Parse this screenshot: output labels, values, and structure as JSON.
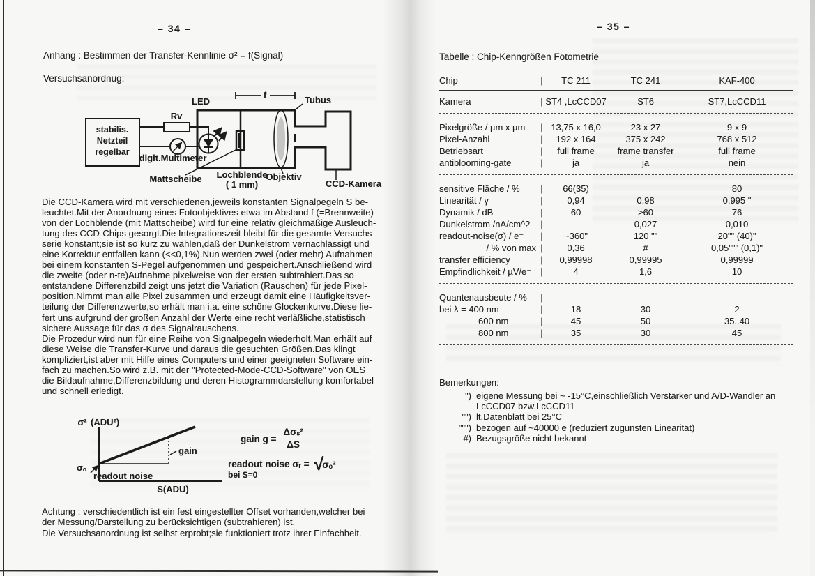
{
  "page_left": {
    "page_number": "–  34  –",
    "heading": "Anhang : Bestimmen der Transfer-Kennlinie σ² = f(Signal)",
    "subheading": "Versuchsanordnug:",
    "diagram": {
      "f_label": "f",
      "led": "LED",
      "rv": "Rv",
      "netzteil_line1": "stabilis.",
      "netzteil_line2": "Netzteil",
      "netzteil_line3": "regelbar",
      "multimeter": "digit.Multimeter",
      "mattscheibe": "Mattscheibe",
      "lochblende_line1": "Lochblende",
      "lochblende_line2": "( 1 mm)",
      "objektiv": "Objektiv",
      "tubus": "Tubus",
      "ccd_kamera": "CCD-Kamera"
    },
    "body_lines": [
      "Die CCD-Kamera wird mit verschiedenen,jeweils konstanten Signalpegeln S be-",
      "leuchtet.Mit der Anordnung eines Fotoobjektives etwa im Abstand f (=Brennweite)",
      "von der Lochblende (mit Mattscheibe) wird für eine relativ gleichmäßige Ausleuch-",
      "tung des CCD-Chips gesorgt.Die Integrationszeit bleibt für die gesamte Versuchs-",
      "serie konstant;sie ist so kurz zu wählen,daß der Dunkelstrom vernachlässigt und",
      "eine Korrektur entfallen kann (<<0,1%).Nun werden zwei (oder mehr) Aufnahmen",
      "bei einem konstanten S-Pegel aufgenommen und gespeichert.Anschließend wird",
      "die zweite (oder n-te)Aufnahme pixelweise von der ersten subtrahiert.Das so",
      "entstandene Differenzbild zeigt uns jetzt die Variation (Rauschen) für jede Pixel-",
      "position.Nimmt man alle Pixel zusammen und erzeugt damit eine Häufigkeitsver-",
      "teilung der Differenzwerte,so erhält man i.a. eine schöne Glockenkurve.Diese lie-",
      "fert uns aufgrund der großen Anzahl der Werte eine recht verläßliche,statistisch",
      "sichere Aussage für das σ des Signalrauschens.",
      "Die Prozedur wird nun für eine Reihe von Signalpegeln wiederholt.Man erhält auf",
      "diese Weise die Transfer-Kurve und daraus die gesuchten Größen.Das klingt",
      "kompliziert,ist aber mit Hilfe eines Computers und einer geeigneten Software ein-",
      "fach zu machen.So wird z.B. mit der \"Protected-Mode-CCD-Software\" von OES",
      "die Bildaufnahme,Differenzbildung und deren Histogrammdarstellung komfortabel",
      "und schnell erledigt."
    ],
    "graph": {
      "y_label": "σ²",
      "y_unit": "(ADU²)",
      "x_label": "S(ADU)",
      "intercept_label": "σₒ",
      "readout_label": "readout noise",
      "gain_label": "gain",
      "eq_gain_lhs": "gain g =",
      "eq_gain_numerator": "Δσₛ²",
      "eq_gain_denominator": "ΔS",
      "eq_noise_lhs": "readout noise σᵣ =",
      "eq_noise_condition": "bei S=0",
      "eq_noise_radicand": "σₒ²"
    },
    "caution_lines": [
      "Achtung : verschiedentlich ist ein fest eingestellter Offset vorhanden,welcher bei",
      "der Messung/Darstellung zu berücksichtigen (subtrahieren) ist.",
      "Die Versuchsanordnung ist selbst erprobt;sie funktioniert trotz ihrer Einfachheit."
    ]
  },
  "page_right": {
    "page_number": "–  35  –",
    "title": "Tabelle : Chip-Kenngrößen Fotometrie",
    "table": {
      "pipe": "|",
      "rows": [
        {
          "type": "rule",
          "style": "thin"
        },
        {
          "label": "Chip",
          "v": [
            "TC 211",
            "TC 241",
            "KAF-400"
          ]
        },
        {
          "type": "rule",
          "style": "double"
        },
        {
          "label": "Kamera",
          "v": [
            "ST4 ,LcCCD07",
            "ST6",
            "ST7,LcCCD11"
          ]
        },
        {
          "type": "rule",
          "style": "dashed"
        },
        {
          "label": "Pixelgröße / µm x µm",
          "v": [
            "13,75 x 16,0",
            "23 x 27",
            "9 x 9"
          ]
        },
        {
          "label": "Pixel-Anzahl",
          "v": [
            "192 x 164",
            "375 x 242",
            "768 x 512"
          ]
        },
        {
          "label": "Betriebsart",
          "v": [
            "full frame",
            "frame transfer",
            "full frame"
          ]
        },
        {
          "label": "antiblooming-gate",
          "v": [
            "ja",
            "ja",
            "nein"
          ]
        },
        {
          "type": "rule",
          "style": "dashed"
        },
        {
          "label": "sensitive Fläche / %",
          "v": [
            "66(35)",
            "",
            "80"
          ]
        },
        {
          "label": "Linearität / γ",
          "v": [
            "0,94",
            "0,98",
            "0,995 \""
          ]
        },
        {
          "label": "Dynamik / dB",
          "v": [
            "60",
            ">60",
            "76"
          ]
        },
        {
          "label": "Dunkelstrom /nA/cm^2",
          "v": [
            "",
            "0,027",
            "0,010"
          ]
        },
        {
          "label": "readout-noise(σ) / e⁻",
          "v": [
            "~360\"",
            "120 \"\"",
            "20\"\" (40)\""
          ]
        },
        {
          "label": "/ % von max",
          "v": [
            "0,36",
            "#",
            "0,05\"\"\" (0,1)\""
          ],
          "align_label": "right"
        },
        {
          "label": "transfer efficiency",
          "v": [
            "0,99998",
            "0,99995",
            "0,99999"
          ]
        },
        {
          "label": "Empfindlichkeit / µV/e⁻",
          "v": [
            "4",
            "1,6",
            "10"
          ]
        },
        {
          "type": "rule",
          "style": "dashed"
        },
        {
          "label": "Quantenausbeute / %",
          "v": [
            "",
            "",
            ""
          ]
        },
        {
          "label": "bei λ = 400 nm",
          "v": [
            "18",
            "30",
            "2"
          ]
        },
        {
          "label": "600 nm",
          "v": [
            "45",
            "50",
            "35..40"
          ],
          "indent": true
        },
        {
          "label": "800 nm",
          "v": [
            "35",
            "30",
            "45"
          ],
          "indent": true
        },
        {
          "type": "rule",
          "style": "dashed"
        }
      ]
    },
    "remarks_title": "Bemerkungen:",
    "remarks": [
      {
        "marker": "\")",
        "lines": [
          "eigene Messung bei ~ -15°C,einschließlich Verstärker und A/D-Wandler an",
          "LcCCD07 bzw.LcCCD11"
        ]
      },
      {
        "marker": "\"\")",
        "lines": [
          "lt.Datenblatt bei 25°C"
        ]
      },
      {
        "marker": "\"\"\")",
        "lines": [
          "bezogen auf ~40000 e (reduziert zugunsten Linearität)"
        ]
      },
      {
        "marker": "#)",
        "lines": [
          "Bezugsgröße nicht bekannt"
        ]
      }
    ]
  }
}
